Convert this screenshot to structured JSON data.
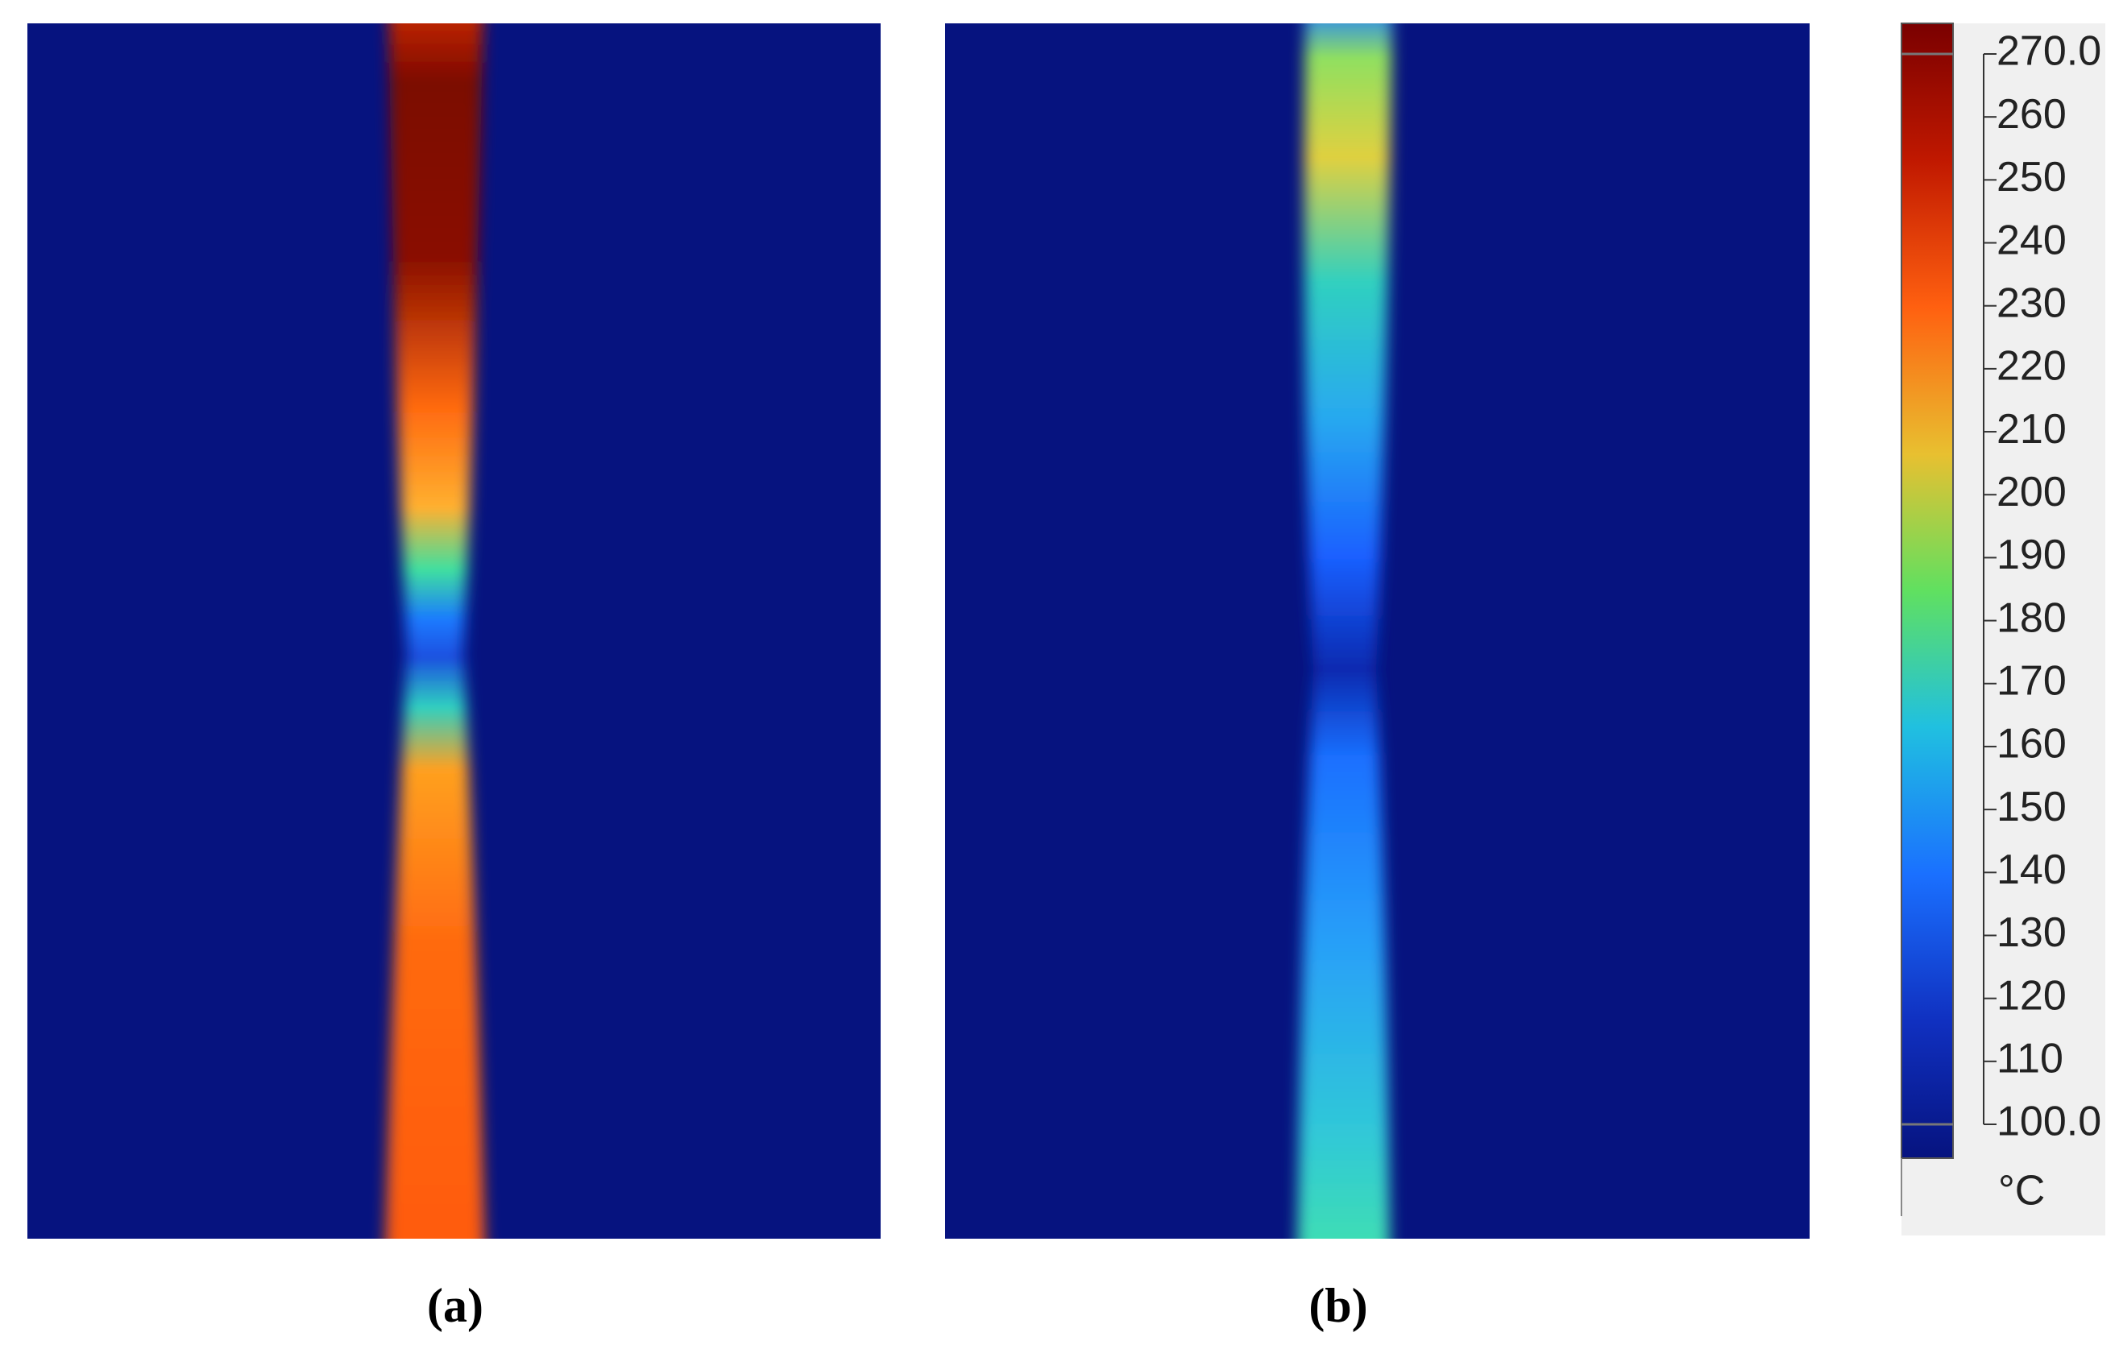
{
  "panels": [
    {
      "label": "(a)"
    },
    {
      "label": "(b)"
    }
  ],
  "colorbar": {
    "unit": "°C",
    "ticks": [
      {
        "value": 270,
        "label": "270.0"
      },
      260,
      250,
      240,
      230,
      220,
      210,
      200,
      190,
      180,
      170,
      160,
      150,
      140,
      130,
      120,
      110,
      {
        "value": 100,
        "label": "100.0"
      }
    ]
  }
}
